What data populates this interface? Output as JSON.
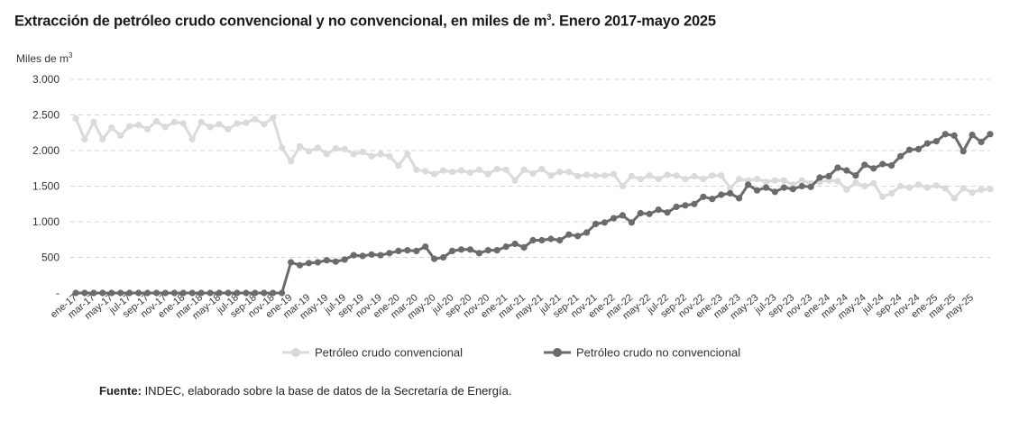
{
  "chart_data": {
    "type": "line",
    "title": "Extracción de petróleo crudo convencional y no convencional, en miles de m³. Enero 2017-mayo 2025",
    "title_main": "Extracción de petróleo crudo convencional y no convencional, en miles de m",
    "title_sup": "3",
    "title_tail": ". Enero 2017-mayo 2025",
    "ylabel_main": "Miles de m",
    "ylabel_sup": "3",
    "ylim": [
      0,
      3000
    ],
    "yticks": [
      {
        "value": 0,
        "label": "-"
      },
      {
        "value": 500,
        "label": "500"
      },
      {
        "value": 1000,
        "label": "1.000"
      },
      {
        "value": 1500,
        "label": "1.500"
      },
      {
        "value": 2000,
        "label": "2.000"
      },
      {
        "value": 2500,
        "label": "2.500"
      },
      {
        "value": 3000,
        "label": "3.000"
      }
    ],
    "grid": true,
    "xtick_labels": [
      "ene-17",
      "mar-17",
      "may-17",
      "jul-17",
      "sep-17",
      "nov-17",
      "ene-18",
      "mar-18",
      "may-18",
      "jul-18",
      "sep-18",
      "nov-18",
      "ene-19",
      "mar-19",
      "may-19",
      "jul-19",
      "sep-19",
      "nov-19",
      "ene-20",
      "mar-20",
      "may-20",
      "jul-20",
      "sep-20",
      "nov-20",
      "ene-21",
      "mar-21",
      "may-21",
      "jul-21",
      "sep-21",
      "nov-21",
      "ene-22",
      "mar-22",
      "may-22",
      "jul-22",
      "sep-22",
      "nov-22",
      "ene-23",
      "mar-23",
      "may-23",
      "jul-23",
      "sep-23",
      "nov-23",
      "ene-24",
      "mar-24",
      "may-24",
      "jul-24",
      "sep-24",
      "nov-24",
      "ene-25",
      "mar-25",
      "may-25"
    ],
    "legend_position": "bottom",
    "series": [
      {
        "name": "Petróleo crudo convencional",
        "color": "#d9dadc",
        "values": [
          2450,
          2160,
          2400,
          2160,
          2320,
          2210,
          2340,
          2360,
          2300,
          2410,
          2330,
          2400,
          2380,
          2160,
          2400,
          2330,
          2370,
          2300,
          2380,
          2390,
          2440,
          2370,
          2460,
          2040,
          1850,
          2060,
          1990,
          2040,
          1950,
          2030,
          2020,
          1950,
          1980,
          1920,
          1950,
          1920,
          1790,
          1950,
          1730,
          1710,
          1670,
          1720,
          1700,
          1720,
          1690,
          1730,
          1670,
          1740,
          1730,
          1580,
          1730,
          1680,
          1740,
          1650,
          1700,
          1700,
          1640,
          1660,
          1650,
          1650,
          1670,
          1500,
          1640,
          1600,
          1650,
          1600,
          1660,
          1650,
          1600,
          1640,
          1600,
          1650,
          1650,
          1470,
          1600,
          1580,
          1600,
          1560,
          1580,
          1580,
          1520,
          1580,
          1540,
          1560,
          1580,
          1570,
          1450,
          1550,
          1500,
          1540,
          1350,
          1400,
          1500,
          1480,
          1520,
          1480,
          1510,
          1470,
          1330,
          1470,
          1410,
          1450,
          1460
        ]
      },
      {
        "name": "Petróleo crudo no convencional",
        "color": "#6b6b6b",
        "values": [
          0,
          0,
          0,
          0,
          0,
          0,
          0,
          0,
          0,
          0,
          0,
          0,
          0,
          0,
          0,
          0,
          0,
          0,
          0,
          0,
          0,
          0,
          0,
          0,
          430,
          390,
          420,
          430,
          460,
          440,
          470,
          530,
          520,
          540,
          530,
          560,
          590,
          600,
          590,
          650,
          480,
          500,
          590,
          610,
          610,
          560,
          600,
          600,
          650,
          690,
          640,
          740,
          740,
          760,
          740,
          820,
          800,
          850,
          970,
          990,
          1050,
          1090,
          990,
          1120,
          1110,
          1170,
          1130,
          1210,
          1230,
          1250,
          1350,
          1320,
          1380,
          1400,
          1330,
          1520,
          1440,
          1480,
          1420,
          1480,
          1460,
          1500,
          1490,
          1620,
          1640,
          1760,
          1720,
          1650,
          1800,
          1750,
          1810,
          1790,
          1920,
          2010,
          2020,
          2100,
          2130,
          2230,
          2210,
          1990,
          2220,
          2120,
          2230
        ]
      }
    ]
  },
  "source": {
    "label": "Fuente:",
    "text": " INDEC, elaborado sobre la base de datos de la Secretaría de Energía."
  }
}
